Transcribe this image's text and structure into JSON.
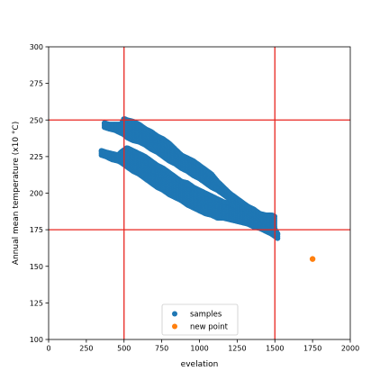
{
  "chart_data": {
    "type": "scatter",
    "xlabel": "evelation",
    "ylabel": "Annual mean temperature (x10 °C)",
    "xlim": [
      0,
      2000
    ],
    "ylim": [
      100,
      300
    ],
    "xticks": [
      0,
      250,
      500,
      750,
      1000,
      1250,
      1500,
      1750,
      2000
    ],
    "yticks": [
      100,
      125,
      150,
      175,
      200,
      225,
      250,
      275,
      300
    ],
    "grid": false,
    "legend_position": "bottom-center",
    "reference_lines": {
      "color": "#e8251f",
      "vertical_x": [
        500,
        1500
      ],
      "horizontal_y": [
        175,
        250
      ]
    },
    "series": [
      {
        "name": "samples",
        "color": "#1f77b4",
        "bands": [
          {
            "x": [
              350,
              380,
              420,
              460,
              480,
              520,
              560,
              600,
              640,
              680,
              720,
              760,
              800,
              840,
              880,
              920,
              960,
              1000,
              1040,
              1080,
              1120,
              1160,
              1200,
              1240,
              1280,
              1320,
              1360,
              1400,
              1440,
              1480,
              1520
            ],
            "y_low": [
              226,
              225,
              223,
              222,
              221,
              218,
              215,
              213,
              210,
              207,
              204,
              202,
              199,
              197,
              195,
              192,
              190,
              188,
              186,
              185,
              183,
              183,
              182,
              181,
              180,
              179,
              177,
              176,
              174,
              172,
              169
            ],
            "y_high": [
              229,
              228,
              227,
              226,
              228,
              231,
              229,
              227,
              225,
              222,
              219,
              217,
              214,
              211,
              208,
              207,
              204,
              202,
              200,
              198,
              196,
              194,
              193,
              191,
              190,
              188,
              186,
              185,
              184,
              179,
              172
            ]
          },
          {
            "x": [
              370,
              400,
              440,
              480,
              500,
              520,
              560,
              600,
              640,
              680,
              720,
              760,
              800,
              840,
              880,
              920,
              960,
              1000,
              1040,
              1080,
              1120,
              1160,
              1200,
              1240,
              1280,
              1320,
              1360,
              1400,
              1440,
              1480,
              1500
            ],
            "y_low": [
              245,
              244,
              243,
              241,
              240,
              238,
              236,
              235,
              233,
              230,
              228,
              225,
              222,
              220,
              217,
              215,
              212,
              210,
              207,
              204,
              202,
              199,
              196,
              194,
              191,
              188,
              185,
              183,
              180,
              178,
              176
            ],
            "y_high": [
              248,
              247,
              247,
              247,
              251,
              250,
              249,
              247,
              244,
              242,
              239,
              237,
              234,
              230,
              226,
              224,
              222,
              219,
              216,
              213,
              208,
              204,
              200,
              197,
              194,
              191,
              189,
              186,
              185,
              185,
              184
            ]
          }
        ]
      },
      {
        "name": "new point",
        "color": "#ff7f0e",
        "points": [
          {
            "x": 1750,
            "y": 155
          }
        ]
      }
    ]
  }
}
